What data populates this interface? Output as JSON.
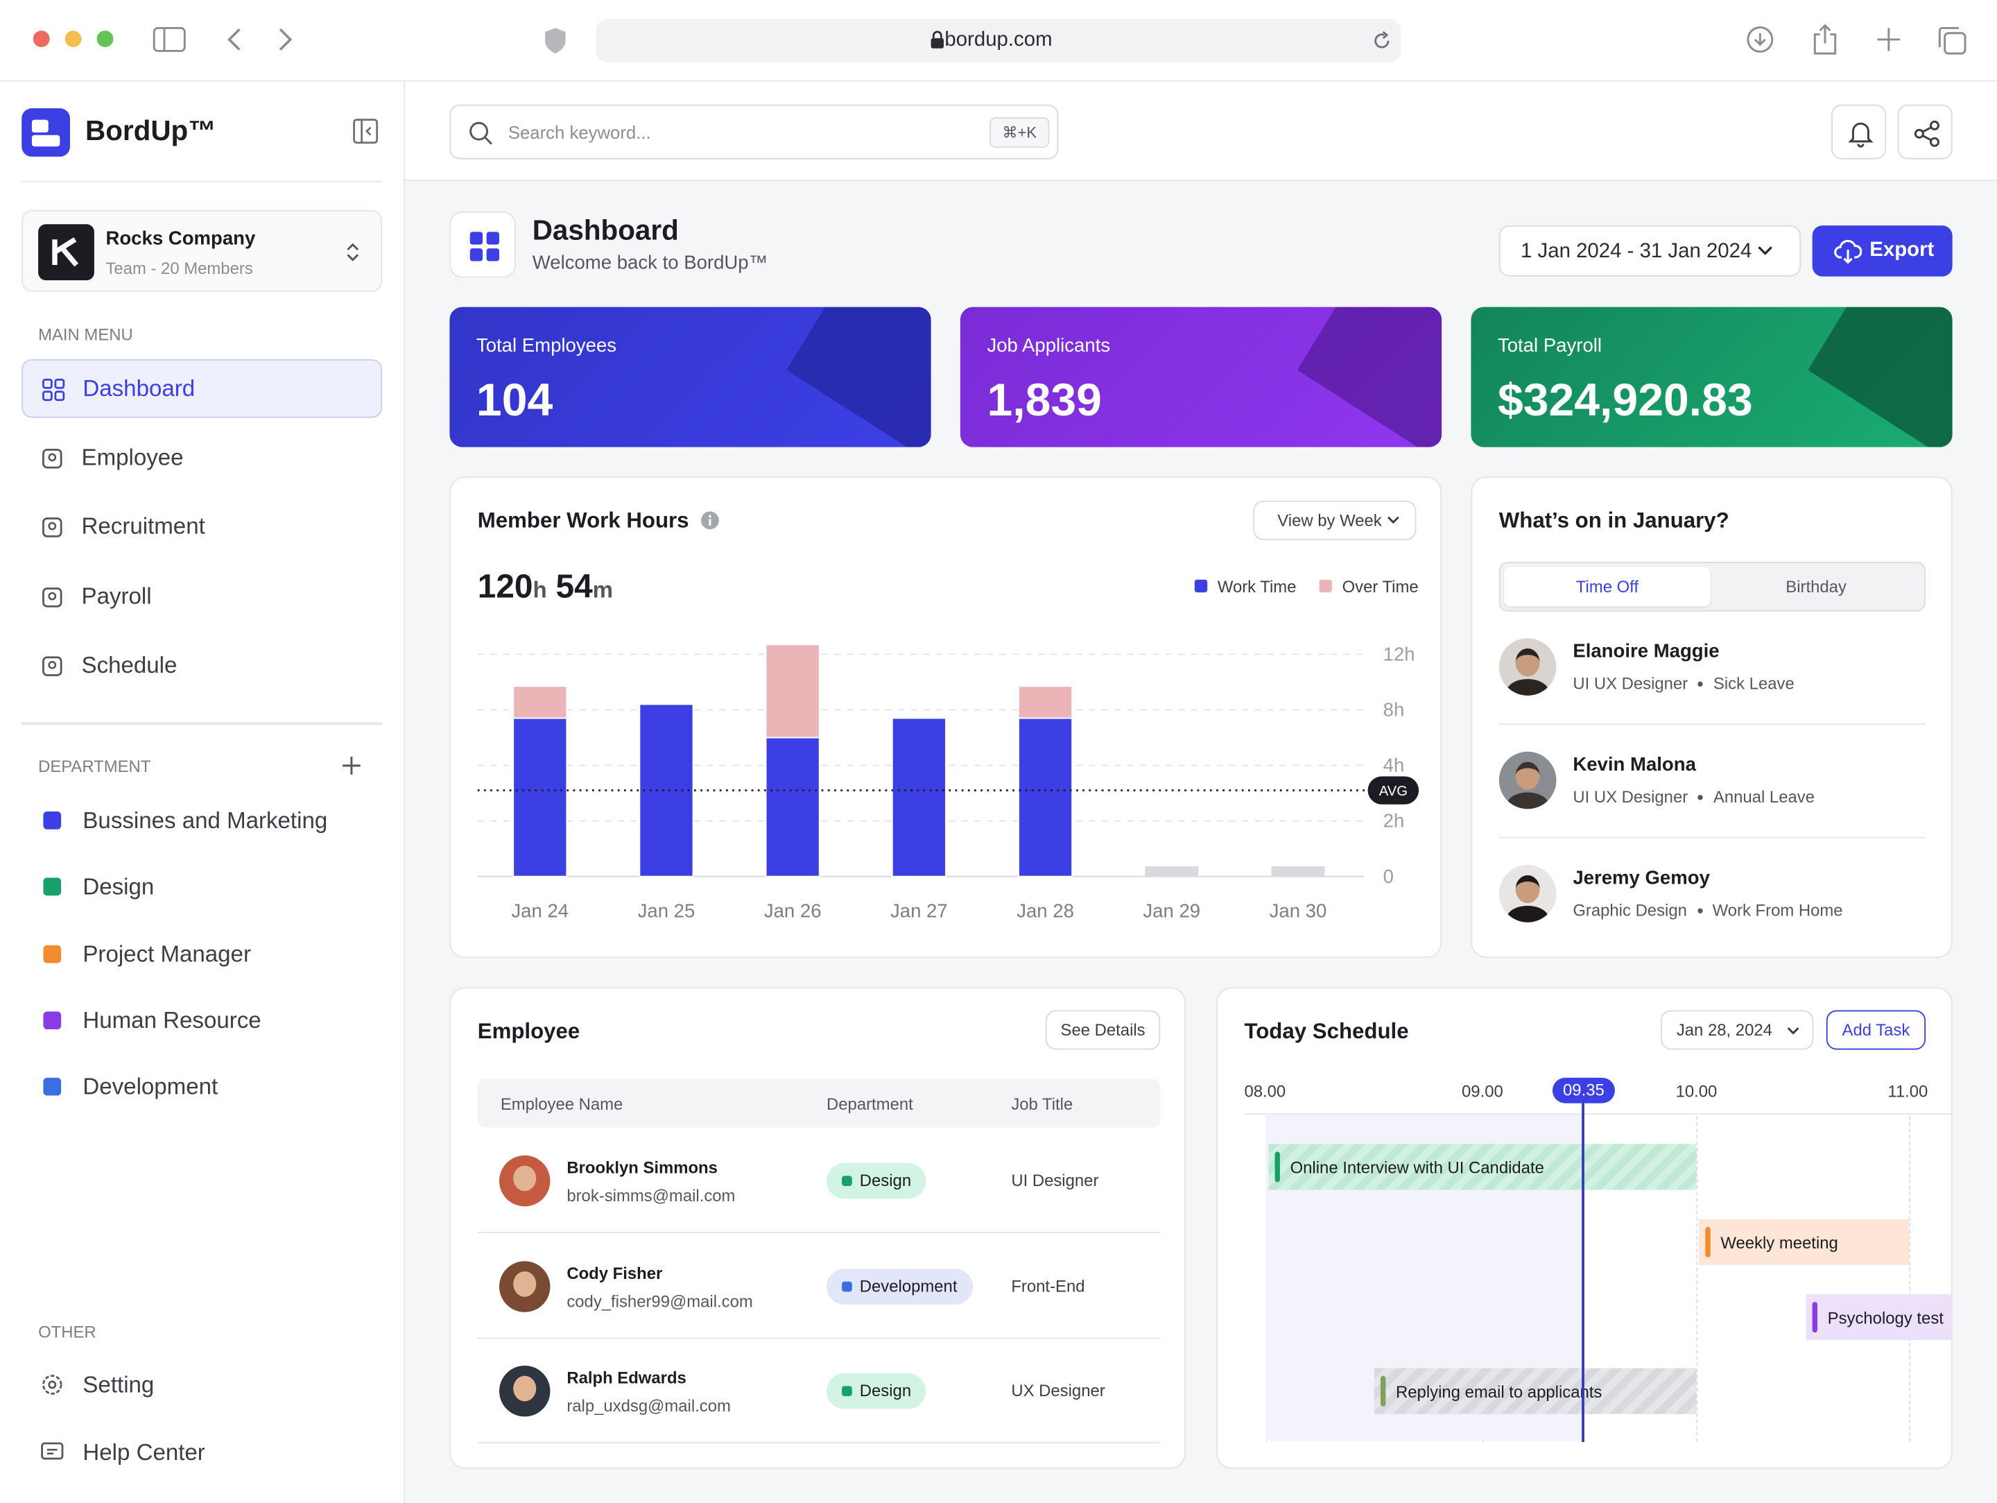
{
  "browser": {
    "url": "bordup.com"
  },
  "sidebar": {
    "brand": "BordUp™",
    "company": {
      "name": "Rocks Company",
      "subtitle": "Team - 20 Members"
    },
    "main_menu_label": "MAIN MENU",
    "main_menu": [
      "Dashboard",
      "Employee",
      "Recruitment",
      "Payroll",
      "Schedule"
    ],
    "department_label": "DEPARTMENT",
    "departments": [
      {
        "name": "Bussines and Marketing",
        "color": "#3b3fe4"
      },
      {
        "name": "Design",
        "color": "#17a06a"
      },
      {
        "name": "Project Manager",
        "color": "#f28a2e"
      },
      {
        "name": "Human Resource",
        "color": "#8a3be6"
      },
      {
        "name": "Development",
        "color": "#3a6fe0"
      }
    ],
    "other_label": "OTHER",
    "other": [
      "Setting",
      "Help Center"
    ]
  },
  "search": {
    "placeholder": "Search keyword...",
    "shortcut": "⌘+K"
  },
  "header": {
    "title": "Dashboard",
    "subtitle": "Welcome back to BordUp™",
    "date_range": "1 Jan 2024 - 31 Jan 2024",
    "export": "Export"
  },
  "stats": [
    {
      "label": "Total Employees",
      "value": "104"
    },
    {
      "label": "Job Applicants",
      "value": "1,839"
    },
    {
      "label": "Total Payroll",
      "value": "$324,920.83"
    }
  ],
  "chart_data": {
    "type": "bar",
    "title": "Member Work Hours",
    "view": "View by Week",
    "total_hours": "120",
    "hours_unit": "h",
    "total_minutes": "54",
    "minutes_unit": "m",
    "stacked": true,
    "categories": [
      "Jan 24",
      "Jan 25",
      "Jan 26",
      "Jan 27",
      "Jan 28",
      "Jan 29",
      "Jan 30"
    ],
    "series": [
      {
        "name": "Work Time",
        "color": "#3b3fe4",
        "values": [
          7.4,
          8.4,
          6,
          7.4,
          7.4,
          null,
          null
        ]
      },
      {
        "name": "Over Time",
        "color": "#ebb5b8",
        "values": [
          2.3,
          null,
          6.7,
          null,
          2.3,
          null,
          null
        ]
      }
    ],
    "ylim": [
      0,
      13
    ],
    "yticks": [
      0,
      {
        "value": 2,
        "label": "2h"
      },
      {
        "value": 4,
        "label": "4h"
      },
      {
        "value": 8,
        "label": "8h"
      },
      {
        "value": 12,
        "label": "12h"
      }
    ],
    "grid": true,
    "avg": {
      "value": 3.1,
      "label": "AVG"
    }
  },
  "time_off": {
    "title": "What’s on in January?",
    "tabs": [
      "Time Off",
      "Birthday"
    ],
    "people": [
      {
        "name": "Elanoire Maggie",
        "role": "UI UX Designer",
        "leave": "Sick Leave"
      },
      {
        "name": "Kevin Malona",
        "role": "UI UX Designer",
        "leave": "Annual Leave"
      },
      {
        "name": "Jeremy Gemoy",
        "role": "Graphic Design",
        "leave": "Work From Home"
      }
    ]
  },
  "employees": {
    "title": "Employee",
    "button": "See Details",
    "columns": [
      "Employee Name",
      "Department",
      "Job Title"
    ],
    "rows": [
      {
        "name": "Brooklyn Simmons",
        "email": "brok-simms@mail.com",
        "department": "Design",
        "job": "UI Designer"
      },
      {
        "name": "Cody Fisher",
        "email": "cody_fisher99@mail.com",
        "department": "Development",
        "job": "Front-End"
      },
      {
        "name": "Ralph Edwards",
        "email": "ralp_uxdsg@mail.com",
        "department": "Design",
        "job": "UX Designer"
      }
    ]
  },
  "schedule": {
    "title": "Today Schedule",
    "date": "Jan 28, 2024",
    "add": "Add Task",
    "times": [
      "08.00",
      "09.00",
      "10.00",
      "11.00"
    ],
    "now": "09.35",
    "events": [
      "Online Interview with UI Candidate",
      "Weekly meeting",
      "Psychology test",
      "Replying email to applicants"
    ]
  }
}
